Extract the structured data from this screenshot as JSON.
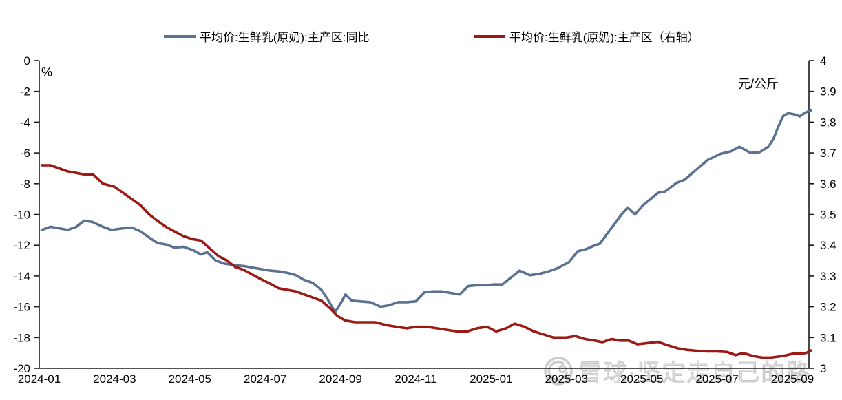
{
  "legend": {
    "items": [
      {
        "label": "平均价:生鲜乳(原奶):主产区:同比",
        "color": "#5a7191"
      },
      {
        "label": "平均价:生鲜乳(原奶):主产区（右轴）",
        "color": "#9b1a15"
      }
    ]
  },
  "left_axis_unit": "%",
  "right_axis_unit": "元/公斤",
  "watermark": {
    "logo": "snowball-icon",
    "text": "雪球·坚定走自己的路"
  },
  "chart_data": {
    "type": "line",
    "title": "",
    "grid": false,
    "legend_position": "top",
    "x_tick_labels": [
      "2024-01",
      "2024-03",
      "2024-05",
      "2024-07",
      "2024-09",
      "2024-11",
      "2025-01",
      "2025-03",
      "2025-05",
      "2025-07",
      "2025-09"
    ],
    "left_axis": {
      "label": "%",
      "min": -20,
      "max": 0,
      "tick_labels": [
        "0",
        "-2",
        "-4",
        "-6",
        "-8",
        "-10",
        "-12",
        "-14",
        "-16",
        "-18",
        "-20"
      ]
    },
    "right_axis": {
      "label": "元/公斤",
      "min": 3,
      "max": 4,
      "tick_labels": [
        "4",
        "3.9",
        "3.8",
        "3.7",
        "3.6",
        "3.5",
        "3.4",
        "3.3",
        "3.2",
        "3.1",
        "3"
      ]
    },
    "series": [
      {
        "name": "平均价:生鲜乳(原奶):主产区:同比",
        "axis": "left",
        "unit": "%",
        "color": "#5a7191",
        "points": [
          [
            "2024-01-03",
            -11.0
          ],
          [
            "2024-01-10",
            -10.8
          ],
          [
            "2024-01-17",
            -10.9
          ],
          [
            "2024-01-24",
            -11.0
          ],
          [
            "2024-01-31",
            -10.8
          ],
          [
            "2024-02-07",
            -10.4
          ],
          [
            "2024-02-14",
            -10.5
          ],
          [
            "2024-02-22",
            -10.8
          ],
          [
            "2024-02-29",
            -11.0
          ],
          [
            "2024-03-08",
            -10.9
          ],
          [
            "2024-03-15",
            -10.85
          ],
          [
            "2024-03-22",
            -11.1
          ],
          [
            "2024-03-29",
            -11.5
          ],
          [
            "2024-04-05",
            -11.85
          ],
          [
            "2024-04-12",
            -11.95
          ],
          [
            "2024-04-19",
            -12.15
          ],
          [
            "2024-04-26",
            -12.1
          ],
          [
            "2024-05-03",
            -12.3
          ],
          [
            "2024-05-10",
            -12.6
          ],
          [
            "2024-05-15",
            -12.45
          ],
          [
            "2024-05-22",
            -13.0
          ],
          [
            "2024-05-29",
            -13.2
          ],
          [
            "2024-06-07",
            -13.3
          ],
          [
            "2024-06-14",
            -13.35
          ],
          [
            "2024-06-21",
            -13.45
          ],
          [
            "2024-06-28",
            -13.55
          ],
          [
            "2024-07-05",
            -13.65
          ],
          [
            "2024-07-12",
            -13.7
          ],
          [
            "2024-07-19",
            -13.8
          ],
          [
            "2024-07-26",
            -13.95
          ],
          [
            "2024-08-02",
            -14.25
          ],
          [
            "2024-08-09",
            -14.45
          ],
          [
            "2024-08-16",
            -14.9
          ],
          [
            "2024-08-21",
            -15.5
          ],
          [
            "2024-08-27",
            -16.35
          ],
          [
            "2024-09-01",
            -15.8
          ],
          [
            "2024-09-05",
            -15.2
          ],
          [
            "2024-09-10",
            -15.6
          ],
          [
            "2024-09-17",
            -15.65
          ],
          [
            "2024-09-25",
            -15.7
          ],
          [
            "2024-10-03",
            -16.0
          ],
          [
            "2024-10-10",
            -15.9
          ],
          [
            "2024-10-17",
            -15.7
          ],
          [
            "2024-10-24",
            -15.7
          ],
          [
            "2024-11-01",
            -15.65
          ],
          [
            "2024-11-08",
            -15.05
          ],
          [
            "2024-11-15",
            -15.0
          ],
          [
            "2024-11-22",
            -15.0
          ],
          [
            "2024-11-29",
            -15.1
          ],
          [
            "2024-12-06",
            -15.2
          ],
          [
            "2024-12-13",
            -14.65
          ],
          [
            "2024-12-20",
            -14.6
          ],
          [
            "2024-12-27",
            -14.6
          ],
          [
            "2025-01-03",
            -14.55
          ],
          [
            "2025-01-10",
            -14.55
          ],
          [
            "2025-01-17",
            -14.1
          ],
          [
            "2025-01-24",
            -13.65
          ],
          [
            "2025-02-02",
            -13.95
          ],
          [
            "2025-02-10",
            -13.85
          ],
          [
            "2025-02-17",
            -13.7
          ],
          [
            "2025-02-24",
            -13.5
          ],
          [
            "2025-03-03",
            -13.1
          ],
          [
            "2025-03-10",
            -12.4
          ],
          [
            "2025-03-17",
            -12.25
          ],
          [
            "2025-03-24",
            -12.0
          ],
          [
            "2025-03-28",
            -11.9
          ],
          [
            "2025-04-03",
            -11.3
          ],
          [
            "2025-04-10",
            -10.55
          ],
          [
            "2025-04-15",
            -10.0
          ],
          [
            "2025-04-20",
            -9.55
          ],
          [
            "2025-04-26",
            -10.0
          ],
          [
            "2025-05-02",
            -9.4
          ],
          [
            "2025-05-08",
            -9.0
          ],
          [
            "2025-05-14",
            -8.6
          ],
          [
            "2025-05-20",
            -8.5
          ],
          [
            "2025-05-29",
            -7.95
          ],
          [
            "2025-06-05",
            -7.75
          ],
          [
            "2025-06-13",
            -7.2
          ],
          [
            "2025-06-24",
            -6.45
          ],
          [
            "2025-07-04",
            -6.05
          ],
          [
            "2025-07-12",
            -5.9
          ],
          [
            "2025-07-19",
            -5.6
          ],
          [
            "2025-07-28",
            -6.0
          ],
          [
            "2025-08-05",
            -5.95
          ],
          [
            "2025-08-12",
            -5.6
          ],
          [
            "2025-08-16",
            -5.1
          ],
          [
            "2025-08-20",
            -4.3
          ],
          [
            "2025-08-24",
            -3.6
          ],
          [
            "2025-08-28",
            -3.42
          ],
          [
            "2025-09-03",
            -3.5
          ],
          [
            "2025-09-07",
            -3.62
          ],
          [
            "2025-09-12",
            -3.35
          ],
          [
            "2025-09-16",
            -3.25
          ]
        ]
      },
      {
        "name": "平均价:生鲜乳(原奶):主产区（右轴）",
        "axis": "right",
        "unit": "元/公斤",
        "color": "#9b1a15",
        "points": [
          [
            "2024-01-03",
            3.66
          ],
          [
            "2024-01-10",
            3.66
          ],
          [
            "2024-01-17",
            3.65
          ],
          [
            "2024-01-24",
            3.64
          ],
          [
            "2024-01-31",
            3.635
          ],
          [
            "2024-02-07",
            3.63
          ],
          [
            "2024-02-14",
            3.63
          ],
          [
            "2024-02-22",
            3.6
          ],
          [
            "2024-03-01",
            3.59
          ],
          [
            "2024-03-08",
            3.57
          ],
          [
            "2024-03-15",
            3.55
          ],
          [
            "2024-03-22",
            3.53
          ],
          [
            "2024-03-29",
            3.5
          ],
          [
            "2024-04-05",
            3.48
          ],
          [
            "2024-04-12",
            3.46
          ],
          [
            "2024-04-19",
            3.445
          ],
          [
            "2024-04-26",
            3.43
          ],
          [
            "2024-05-03",
            3.42
          ],
          [
            "2024-05-10",
            3.415
          ],
          [
            "2024-05-17",
            3.39
          ],
          [
            "2024-05-24",
            3.365
          ],
          [
            "2024-05-31",
            3.35
          ],
          [
            "2024-06-07",
            3.33
          ],
          [
            "2024-06-14",
            3.32
          ],
          [
            "2024-06-21",
            3.305
          ],
          [
            "2024-06-28",
            3.29
          ],
          [
            "2024-07-05",
            3.275
          ],
          [
            "2024-07-12",
            3.26
          ],
          [
            "2024-07-19",
            3.255
          ],
          [
            "2024-07-26",
            3.25
          ],
          [
            "2024-08-02",
            3.24
          ],
          [
            "2024-08-09",
            3.23
          ],
          [
            "2024-08-16",
            3.22
          ],
          [
            "2024-08-23",
            3.195
          ],
          [
            "2024-08-29",
            3.17
          ],
          [
            "2024-09-05",
            3.155
          ],
          [
            "2024-09-13",
            3.15
          ],
          [
            "2024-09-21",
            3.15
          ],
          [
            "2024-09-29",
            3.15
          ],
          [
            "2024-10-08",
            3.14
          ],
          [
            "2024-10-16",
            3.135
          ],
          [
            "2024-10-24",
            3.13
          ],
          [
            "2024-11-01",
            3.135
          ],
          [
            "2024-11-10",
            3.135
          ],
          [
            "2024-11-18",
            3.13
          ],
          [
            "2024-11-26",
            3.125
          ],
          [
            "2024-12-04",
            3.12
          ],
          [
            "2024-12-12",
            3.12
          ],
          [
            "2024-12-20",
            3.13
          ],
          [
            "2024-12-28",
            3.135
          ],
          [
            "2025-01-05",
            3.12
          ],
          [
            "2025-01-13",
            3.13
          ],
          [
            "2025-01-20",
            3.145
          ],
          [
            "2025-01-28",
            3.135
          ],
          [
            "2025-02-05",
            3.12
          ],
          [
            "2025-02-13",
            3.11
          ],
          [
            "2025-02-21",
            3.1
          ],
          [
            "2025-03-01",
            3.1
          ],
          [
            "2025-03-08",
            3.105
          ],
          [
            "2025-03-16",
            3.095
          ],
          [
            "2025-03-24",
            3.09
          ],
          [
            "2025-03-30",
            3.085
          ],
          [
            "2025-04-07",
            3.095
          ],
          [
            "2025-04-14",
            3.09
          ],
          [
            "2025-04-21",
            3.09
          ],
          [
            "2025-04-28",
            3.078
          ],
          [
            "2025-05-06",
            3.082
          ],
          [
            "2025-05-14",
            3.086
          ],
          [
            "2025-05-22",
            3.075
          ],
          [
            "2025-05-30",
            3.065
          ],
          [
            "2025-06-07",
            3.06
          ],
          [
            "2025-06-15",
            3.057
          ],
          [
            "2025-06-23",
            3.055
          ],
          [
            "2025-07-01",
            3.055
          ],
          [
            "2025-07-09",
            3.053
          ],
          [
            "2025-07-16",
            3.043
          ],
          [
            "2025-07-22",
            3.05
          ],
          [
            "2025-07-30",
            3.04
          ],
          [
            "2025-08-07",
            3.035
          ],
          [
            "2025-08-14",
            3.035
          ],
          [
            "2025-08-20",
            3.038
          ],
          [
            "2025-08-26",
            3.042
          ],
          [
            "2025-09-02",
            3.048
          ],
          [
            "2025-09-08",
            3.048
          ],
          [
            "2025-09-12",
            3.05
          ],
          [
            "2025-09-16",
            3.058
          ]
        ]
      }
    ]
  }
}
